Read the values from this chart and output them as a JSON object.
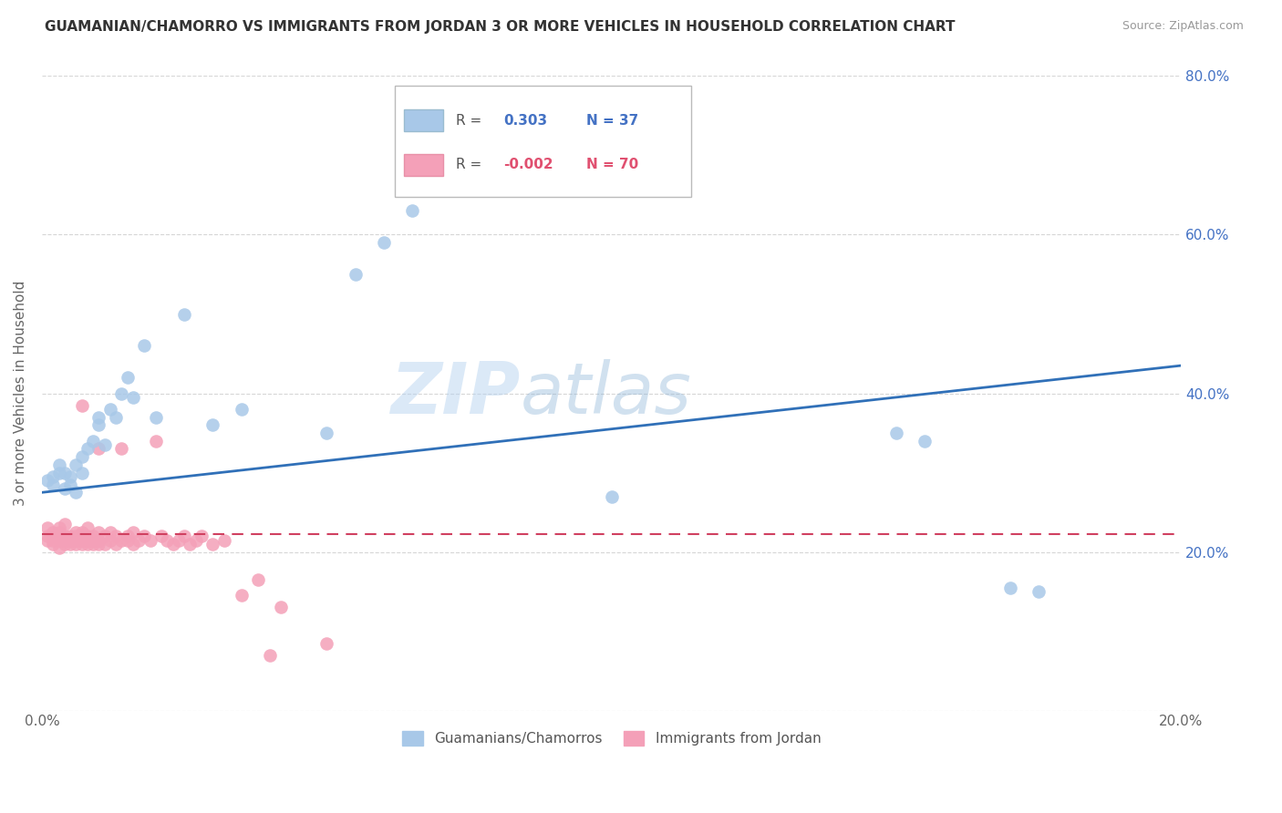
{
  "title": "GUAMANIAN/CHAMORRO VS IMMIGRANTS FROM JORDAN 3 OR MORE VEHICLES IN HOUSEHOLD CORRELATION CHART",
  "source": "Source: ZipAtlas.com",
  "ylabel": "3 or more Vehicles in Household",
  "xmin": 0.0,
  "xmax": 0.2,
  "ymin": 0.0,
  "ymax": 0.8,
  "yticks": [
    0.0,
    0.2,
    0.4,
    0.6,
    0.8
  ],
  "xticks": [
    0.0,
    0.05,
    0.1,
    0.15,
    0.2
  ],
  "blue_color": "#a8c8e8",
  "pink_color": "#f4a0b8",
  "blue_line_color": "#3070b8",
  "pink_line_color": "#d04060",
  "blue_label": "Guamanians/Chamorros",
  "pink_label": "Immigrants from Jordan",
  "watermark_zip": "ZIP",
  "watermark_atlas": "atlas",
  "blue_r_val": "0.303",
  "blue_n_val": "37",
  "pink_r_val": "-0.002",
  "pink_n_val": "70",
  "blue_scatter_x": [
    0.001,
    0.002,
    0.002,
    0.003,
    0.003,
    0.004,
    0.004,
    0.005,
    0.005,
    0.006,
    0.006,
    0.007,
    0.007,
    0.008,
    0.009,
    0.01,
    0.01,
    0.011,
    0.012,
    0.013,
    0.014,
    0.015,
    0.016,
    0.018,
    0.02,
    0.025,
    0.03,
    0.035,
    0.05,
    0.055,
    0.06,
    0.065,
    0.1,
    0.15,
    0.155,
    0.17,
    0.175
  ],
  "blue_scatter_y": [
    0.29,
    0.285,
    0.295,
    0.3,
    0.31,
    0.28,
    0.3,
    0.295,
    0.285,
    0.275,
    0.31,
    0.32,
    0.3,
    0.33,
    0.34,
    0.36,
    0.37,
    0.335,
    0.38,
    0.37,
    0.4,
    0.42,
    0.395,
    0.46,
    0.37,
    0.5,
    0.36,
    0.38,
    0.35,
    0.55,
    0.59,
    0.63,
    0.27,
    0.35,
    0.34,
    0.155,
    0.15
  ],
  "pink_scatter_x": [
    0.001,
    0.001,
    0.001,
    0.002,
    0.002,
    0.002,
    0.002,
    0.003,
    0.003,
    0.003,
    0.003,
    0.003,
    0.004,
    0.004,
    0.004,
    0.004,
    0.005,
    0.005,
    0.005,
    0.006,
    0.006,
    0.006,
    0.006,
    0.007,
    0.007,
    0.007,
    0.007,
    0.007,
    0.008,
    0.008,
    0.008,
    0.008,
    0.009,
    0.009,
    0.009,
    0.01,
    0.01,
    0.01,
    0.01,
    0.011,
    0.011,
    0.012,
    0.012,
    0.013,
    0.013,
    0.014,
    0.014,
    0.015,
    0.015,
    0.016,
    0.016,
    0.017,
    0.018,
    0.019,
    0.02,
    0.021,
    0.022,
    0.023,
    0.024,
    0.025,
    0.026,
    0.027,
    0.028,
    0.03,
    0.032,
    0.035,
    0.038,
    0.04,
    0.042,
    0.05
  ],
  "pink_scatter_y": [
    0.22,
    0.215,
    0.23,
    0.21,
    0.215,
    0.22,
    0.225,
    0.205,
    0.215,
    0.22,
    0.225,
    0.23,
    0.21,
    0.215,
    0.22,
    0.235,
    0.21,
    0.215,
    0.22,
    0.21,
    0.215,
    0.22,
    0.225,
    0.21,
    0.215,
    0.22,
    0.225,
    0.385,
    0.21,
    0.215,
    0.22,
    0.23,
    0.21,
    0.215,
    0.22,
    0.21,
    0.215,
    0.225,
    0.33,
    0.21,
    0.22,
    0.215,
    0.225,
    0.21,
    0.22,
    0.215,
    0.33,
    0.22,
    0.215,
    0.225,
    0.21,
    0.215,
    0.22,
    0.215,
    0.34,
    0.22,
    0.215,
    0.21,
    0.215,
    0.22,
    0.21,
    0.215,
    0.22,
    0.21,
    0.215,
    0.145,
    0.165,
    0.07,
    0.13,
    0.085
  ],
  "blue_trendline_x": [
    0.0,
    0.2
  ],
  "blue_trendline_y": [
    0.275,
    0.435
  ],
  "pink_trendline_x": [
    0.0,
    0.2
  ],
  "pink_trendline_y": [
    0.222,
    0.222
  ]
}
